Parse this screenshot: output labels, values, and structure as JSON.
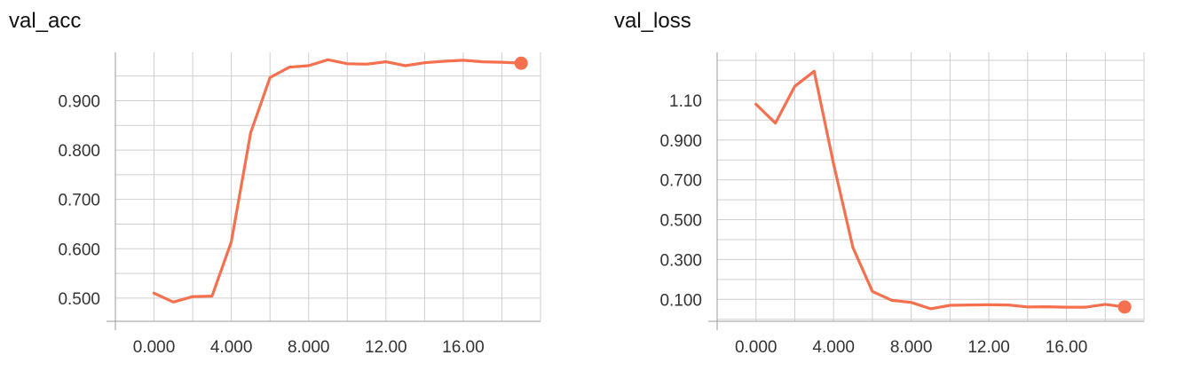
{
  "colors": {
    "line": "#f4704e",
    "grid": "#cfcfcf",
    "axis": "#9e9e9e"
  },
  "chart_data": [
    {
      "type": "line",
      "title": "val_acc",
      "xlabel": "",
      "ylabel": "",
      "xlim": [
        -2.0,
        20.0
      ],
      "ylim": [
        0.453,
        0.998
      ],
      "x_ticks": [
        0,
        4,
        8,
        12,
        16
      ],
      "x_tick_labels": [
        "0.000",
        "4.000",
        "8.000",
        "12.00",
        "16.00"
      ],
      "y_ticks": [
        0.5,
        0.6,
        0.7,
        0.8,
        0.9
      ],
      "y_tick_labels": [
        "0.500",
        "0.600",
        "0.700",
        "0.800",
        "0.900"
      ],
      "grid": true,
      "series": [
        {
          "x": [
            0,
            1,
            2,
            3,
            4,
            5,
            6,
            7,
            8,
            9,
            10,
            11,
            12,
            13,
            14,
            15,
            16,
            17,
            18,
            19
          ],
          "y": [
            0.51,
            0.492,
            0.503,
            0.504,
            0.614,
            0.835,
            0.947,
            0.968,
            0.971,
            0.983,
            0.975,
            0.974,
            0.979,
            0.971,
            0.977,
            0.98,
            0.982,
            0.979,
            0.978,
            0.976
          ]
        }
      ]
    },
    {
      "type": "line",
      "title": "val_loss",
      "xlabel": "",
      "ylabel": "",
      "xlim": [
        -2.0,
        20.0
      ],
      "ylim": [
        -0.01,
        1.34
      ],
      "x_ticks": [
        0,
        4,
        8,
        12,
        16
      ],
      "x_tick_labels": [
        "0.000",
        "4.000",
        "8.000",
        "12.00",
        "16.00"
      ],
      "y_ticks": [
        0.1,
        0.3,
        0.5,
        0.7,
        0.9,
        1.1
      ],
      "y_tick_labels": [
        "0.100",
        "0.300",
        "0.500",
        "0.700",
        "0.900",
        "1.10"
      ],
      "grid": true,
      "series": [
        {
          "x": [
            0,
            1,
            2,
            3,
            4,
            5,
            6,
            7,
            8,
            9,
            10,
            11,
            12,
            13,
            14,
            15,
            16,
            17,
            18,
            19
          ],
          "y": [
            1.08,
            0.985,
            1.17,
            1.245,
            0.78,
            0.36,
            0.14,
            0.095,
            0.085,
            0.053,
            0.07,
            0.072,
            0.073,
            0.072,
            0.062,
            0.063,
            0.061,
            0.061,
            0.075,
            0.062
          ]
        }
      ]
    }
  ]
}
